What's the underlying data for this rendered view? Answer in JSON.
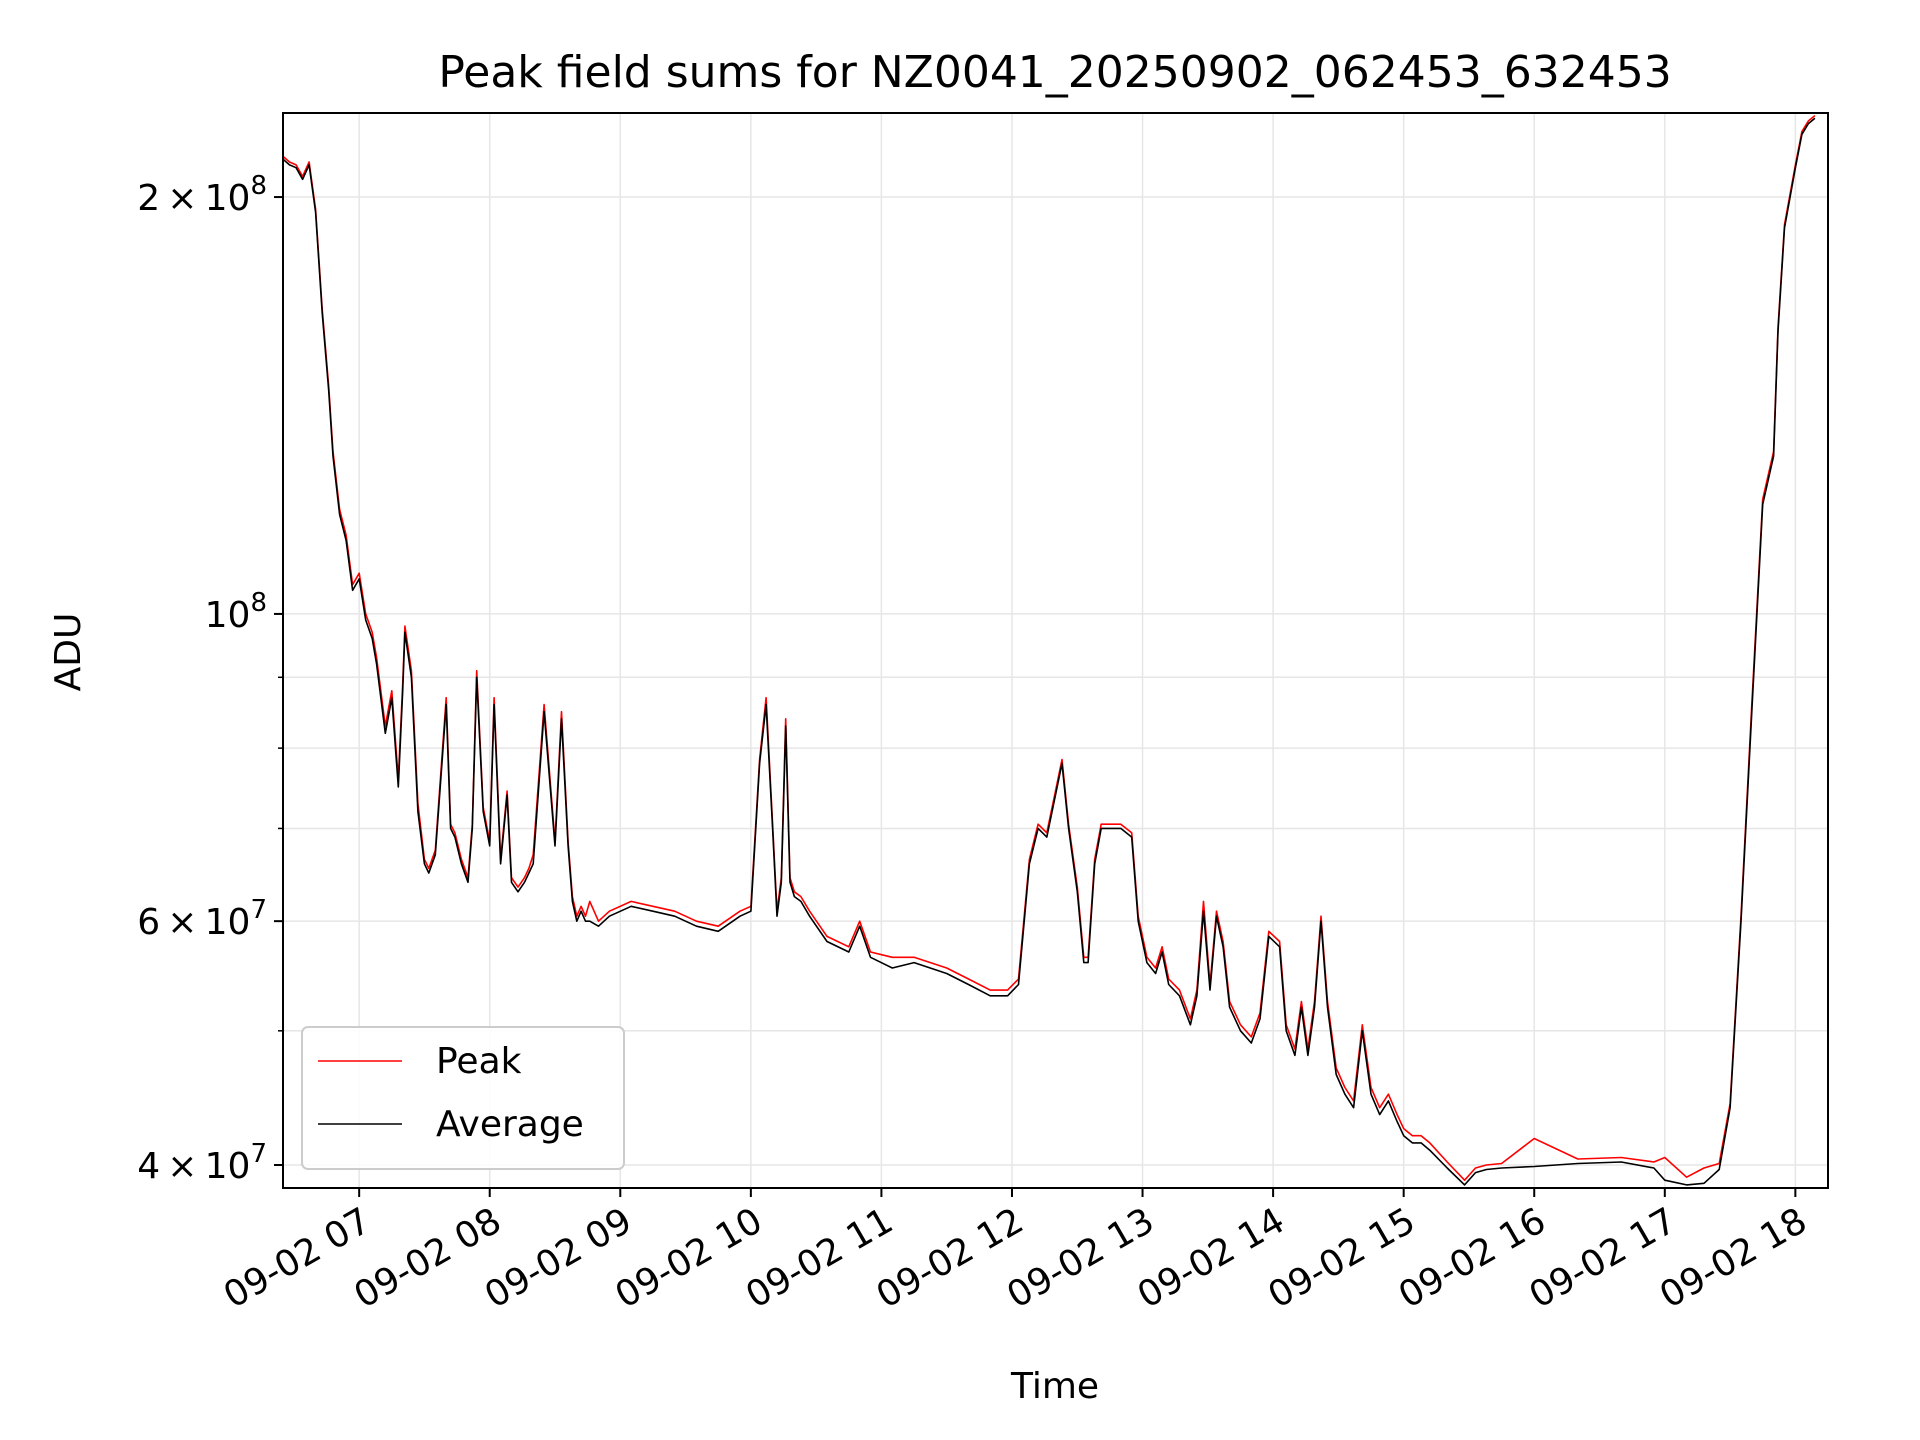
{
  "chart_data": {
    "type": "line",
    "title": "Peak field sums for NZ0041_20250902_062453_632453",
    "xlabel": "Time",
    "ylabel": "ADU",
    "yscale": "log",
    "xlim": [
      "2025-09-02 06:25",
      "2025-09-02 18:15"
    ],
    "ylim": [
      38500000,
      230000000
    ],
    "x_ticks": [
      "09-02 07",
      "09-02 08",
      "09-02 09",
      "09-02 10",
      "09-02 11",
      "09-02 12",
      "09-02 13",
      "09-02 14",
      "09-02 15",
      "09-02 16",
      "09-02 17",
      "09-02 18"
    ],
    "y_ticks": [
      {
        "value": 40000000,
        "base": "4",
        "exp": "7"
      },
      {
        "value": 60000000,
        "base": "6",
        "exp": "7"
      },
      {
        "value": 100000000,
        "base": "",
        "exp": "8"
      },
      {
        "value": 200000000,
        "base": "2",
        "exp": "8"
      }
    ],
    "grid": true,
    "legend": {
      "position": "lower-left",
      "entries": [
        "Peak",
        "Average"
      ]
    },
    "colors": {
      "peak": "#ff0000",
      "average": "#000000"
    },
    "x": [
      "2025-09-02 06:25",
      "2025-09-02 06:28",
      "2025-09-02 06:31",
      "2025-09-02 06:34",
      "2025-09-02 06:37",
      "2025-09-02 06:40",
      "2025-09-02 06:43",
      "2025-09-02 06:46",
      "2025-09-02 06:48",
      "2025-09-02 06:51",
      "2025-09-02 06:54",
      "2025-09-02 06:57",
      "2025-09-02 07:00",
      "2025-09-02 07:03",
      "2025-09-02 07:06",
      "2025-09-02 07:08",
      "2025-09-02 07:12",
      "2025-09-02 07:15",
      "2025-09-02 07:18",
      "2025-09-02 07:20",
      "2025-09-02 07:21",
      "2025-09-02 07:24",
      "2025-09-02 07:27",
      "2025-09-02 07:30",
      "2025-09-02 07:32",
      "2025-09-02 07:35",
      "2025-09-02 07:40",
      "2025-09-02 07:42",
      "2025-09-02 07:44",
      "2025-09-02 07:47",
      "2025-09-02 07:50",
      "2025-09-02 07:52",
      "2025-09-02 07:54",
      "2025-09-02 07:57",
      "2025-09-02 08:00",
      "2025-09-02 08:02",
      "2025-09-02 08:05",
      "2025-09-02 08:08",
      "2025-09-02 08:10",
      "2025-09-02 08:13",
      "2025-09-02 08:16",
      "2025-09-02 08:18",
      "2025-09-02 08:20",
      "2025-09-02 08:25",
      "2025-09-02 08:30",
      "2025-09-02 08:33",
      "2025-09-02 08:36",
      "2025-09-02 08:38",
      "2025-09-02 08:40",
      "2025-09-02 08:42",
      "2025-09-02 08:44",
      "2025-09-02 08:46",
      "2025-09-02 08:50",
      "2025-09-02 08:55",
      "2025-09-02 09:05",
      "2025-09-02 09:15",
      "2025-09-02 09:25",
      "2025-09-02 09:35",
      "2025-09-02 09:45",
      "2025-09-02 09:55",
      "2025-09-02 10:00",
      "2025-09-02 10:04",
      "2025-09-02 10:07",
      "2025-09-02 10:10",
      "2025-09-02 10:12",
      "2025-09-02 10:14",
      "2025-09-02 10:16",
      "2025-09-02 10:18",
      "2025-09-02 10:20",
      "2025-09-02 10:23",
      "2025-09-02 10:27",
      "2025-09-02 10:35",
      "2025-09-02 10:45",
      "2025-09-02 10:50",
      "2025-09-02 10:55",
      "2025-09-02 11:05",
      "2025-09-02 11:15",
      "2025-09-02 11:30",
      "2025-09-02 11:40",
      "2025-09-02 11:50",
      "2025-09-02 11:58",
      "2025-09-02 12:03",
      "2025-09-02 12:08",
      "2025-09-02 12:12",
      "2025-09-02 12:16",
      "2025-09-02 12:20",
      "2025-09-02 12:23",
      "2025-09-02 12:26",
      "2025-09-02 12:30",
      "2025-09-02 12:33",
      "2025-09-02 12:35",
      "2025-09-02 12:38",
      "2025-09-02 12:41",
      "2025-09-02 12:45",
      "2025-09-02 12:50",
      "2025-09-02 12:55",
      "2025-09-02 12:58",
      "2025-09-02 13:02",
      "2025-09-02 13:06",
      "2025-09-02 13:09",
      "2025-09-02 13:12",
      "2025-09-02 13:17",
      "2025-09-02 13:22",
      "2025-09-02 13:25",
      "2025-09-02 13:28",
      "2025-09-02 13:31",
      "2025-09-02 13:34",
      "2025-09-02 13:37",
      "2025-09-02 13:40",
      "2025-09-02 13:45",
      "2025-09-02 13:50",
      "2025-09-02 13:54",
      "2025-09-02 13:58",
      "2025-09-02 14:03",
      "2025-09-02 14:06",
      "2025-09-02 14:10",
      "2025-09-02 14:13",
      "2025-09-02 14:16",
      "2025-09-02 14:19",
      "2025-09-02 14:22",
      "2025-09-02 14:25",
      "2025-09-02 14:29",
      "2025-09-02 14:33",
      "2025-09-02 14:37",
      "2025-09-02 14:41",
      "2025-09-02 14:45",
      "2025-09-02 14:49",
      "2025-09-02 14:53",
      "2025-09-02 14:57",
      "2025-09-02 15:00",
      "2025-09-02 15:04",
      "2025-09-02 15:08",
      "2025-09-02 15:12",
      "2025-09-02 15:20",
      "2025-09-02 15:28",
      "2025-09-02 15:33",
      "2025-09-02 15:38",
      "2025-09-02 15:45",
      "2025-09-02 16:00",
      "2025-09-02 16:20",
      "2025-09-02 16:40",
      "2025-09-02 16:55",
      "2025-09-02 17:00",
      "2025-09-02 17:10",
      "2025-09-02 17:18",
      "2025-09-02 17:25",
      "2025-09-02 17:30",
      "2025-09-02 17:35",
      "2025-09-02 17:40",
      "2025-09-02 17:45",
      "2025-09-02 17:50",
      "2025-09-02 17:52",
      "2025-09-02 17:55",
      "2025-09-02 18:00",
      "2025-09-02 18:03",
      "2025-09-02 18:06",
      "2025-09-02 18:09",
      "2025-09-02 18:12"
    ],
    "average": [
      213000000,
      211000000,
      210000000,
      206000000,
      211000000,
      195000000,
      165000000,
      145000000,
      130000000,
      118000000,
      113000000,
      104000000,
      106000000,
      99000000,
      96000000,
      92000000,
      82000000,
      87000000,
      75000000,
      88000000,
      97000000,
      90000000,
      72000000,
      66000000,
      65000000,
      67000000,
      86000000,
      70000000,
      69000000,
      66000000,
      64000000,
      70000000,
      90000000,
      72000000,
      68000000,
      86000000,
      66000000,
      74000000,
      64000000,
      63000000,
      64000000,
      65000000,
      66000000,
      85000000,
      68000000,
      84000000,
      68000000,
      62000000,
      60000000,
      61000000,
      60000000,
      60000000,
      59500000,
      60500000,
      61500000,
      61000000,
      60500000,
      59500000,
      59000000,
      60500000,
      61000000,
      78000000,
      86000000,
      70000000,
      60500000,
      64000000,
      83000000,
      64000000,
      62500000,
      62000000,
      60500000,
      58000000,
      57000000,
      59500000,
      56500000,
      55500000,
      56000000,
      55000000,
      54000000,
      53000000,
      53000000,
      54000000,
      66000000,
      70000000,
      69000000,
      74000000,
      78000000,
      70000000,
      63000000,
      56000000,
      56000000,
      66000000,
      70000000,
      70000000,
      70000000,
      69000000,
      60000000,
      56000000,
      55000000,
      57000000,
      54000000,
      53000000,
      50500000,
      53000000,
      61000000,
      53500000,
      60500000,
      57500000,
      52000000,
      50000000,
      49000000,
      51000000,
      58500000,
      57500000,
      50000000,
      48000000,
      52000000,
      48000000,
      52000000,
      60000000,
      52000000,
      46500000,
      45000000,
      44000000,
      50000000,
      45000000,
      43500000,
      44500000,
      43000000,
      42000000,
      41500000,
      41500000,
      41000000,
      39800000,
      38700000,
      39500000,
      39700000,
      39800000,
      39900000,
      40100000,
      40200000,
      39800000,
      39000000,
      38700000,
      38800000,
      39700000,
      44000000,
      60000000,
      85000000,
      120000000,
      130000000,
      160000000,
      190000000,
      210000000,
      222000000,
      226000000,
      228000000
    ],
    "peak": [
      214000000,
      212000000,
      211000000,
      207000000,
      212000000,
      196000000,
      166000000,
      146000000,
      131000000,
      119000000,
      114000000,
      105000000,
      107000000,
      100000000,
      97000000,
      93000000,
      83000000,
      88000000,
      76000000,
      89000000,
      98000000,
      91000000,
      73000000,
      66500000,
      65500000,
      67500000,
      87000000,
      70500000,
      69500000,
      66500000,
      64500000,
      70500000,
      91000000,
      72500000,
      68500000,
      87000000,
      66500000,
      74500000,
      64500000,
      63500000,
      64500000,
      65500000,
      67000000,
      86000000,
      68500000,
      85000000,
      68500000,
      62500000,
      60500000,
      61500000,
      60500000,
      62000000,
      60000000,
      61000000,
      62000000,
      61500000,
      61000000,
      60000000,
      59500000,
      61000000,
      61500000,
      78500000,
      87000000,
      70500000,
      61000000,
      64500000,
      84000000,
      64500000,
      63000000,
      62500000,
      61000000,
      58500000,
      57500000,
      60000000,
      57000000,
      56500000,
      56500000,
      55500000,
      54500000,
      53500000,
      53500000,
      54500000,
      66500000,
      70500000,
      69500000,
      74500000,
      78500000,
      70500000,
      63500000,
      56500000,
      56500000,
      66500000,
      70500000,
      70500000,
      70500000,
      69500000,
      60500000,
      56500000,
      55500000,
      57500000,
      54500000,
      53500000,
      51000000,
      53500000,
      62000000,
      54000000,
      61000000,
      58000000,
      52500000,
      50500000,
      49500000,
      51500000,
      59000000,
      58000000,
      50500000,
      48500000,
      52500000,
      48500000,
      52500000,
      60500000,
      52500000,
      47000000,
      45500000,
      44500000,
      50500000,
      45500000,
      44000000,
      45000000,
      43500000,
      42500000,
      42000000,
      42000000,
      41500000,
      40200000,
      39000000,
      39800000,
      40000000,
      40100000,
      41800000,
      40400000,
      40500000,
      40200000,
      40500000,
      39200000,
      39800000,
      40100000,
      44300000,
      60500000,
      86000000,
      121000000,
      131000000,
      161000000,
      191000000,
      211000000,
      223000000,
      227000000,
      229000000
    ]
  }
}
